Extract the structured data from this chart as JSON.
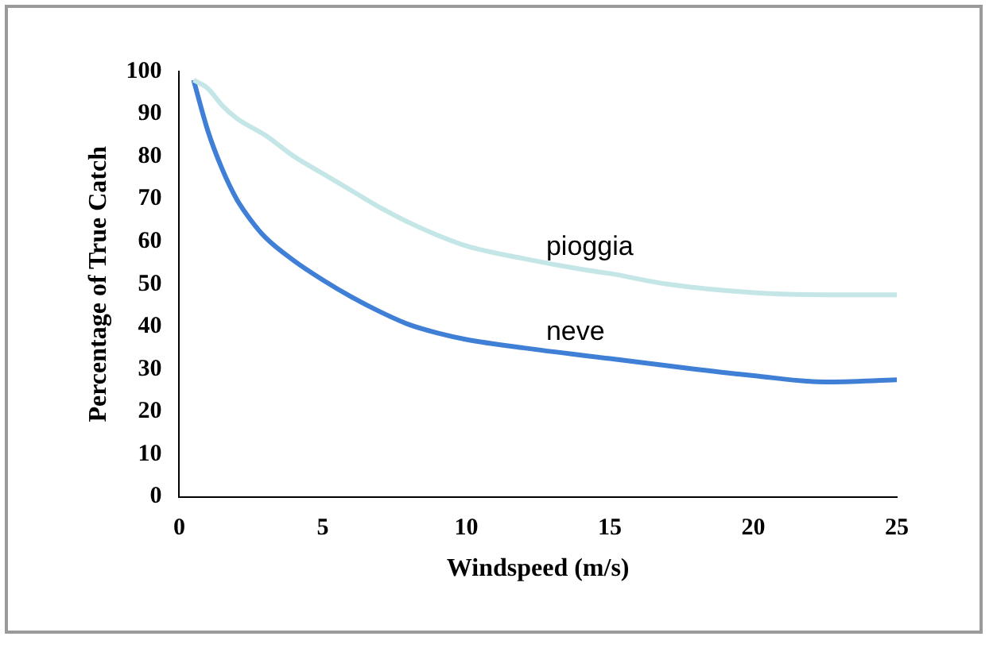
{
  "chart_data": {
    "type": "line",
    "xlabel": "Windspeed (m/s)",
    "ylabel": "Percentage of True Catch",
    "xlim": [
      0,
      25
    ],
    "xticks": [
      0,
      5,
      10,
      15,
      20,
      25
    ],
    "ylim": [
      0,
      100
    ],
    "yticks": [
      0,
      10,
      20,
      30,
      40,
      50,
      60,
      70,
      80,
      90,
      100
    ],
    "grid": false,
    "legend": false,
    "marker": "none",
    "line_style": "solid",
    "series": [
      {
        "name": "pioggia",
        "color": "#c4e6e6",
        "x": [
          0.5,
          1,
          1.5,
          2,
          3,
          4,
          5,
          6,
          7,
          8,
          9,
          10,
          12,
          14,
          15,
          17,
          20,
          22.5,
          25
        ],
        "values": [
          98,
          96,
          92,
          89,
          85,
          80,
          76,
          72,
          68,
          64.5,
          61.5,
          59,
          56,
          53.5,
          52.5,
          50,
          48,
          47.5,
          47.5
        ]
      },
      {
        "name": "neve",
        "color": "#3f7fd6",
        "x": [
          0.5,
          1,
          1.5,
          2,
          2.5,
          3,
          4,
          5,
          6,
          7,
          8,
          9,
          10,
          12,
          15,
          18,
          20,
          22.5,
          25
        ],
        "values": [
          98,
          86,
          77,
          70,
          65,
          61,
          55.5,
          51,
          47,
          43.5,
          40.5,
          38.5,
          37,
          35,
          32.5,
          30,
          28.5,
          27,
          27.5
        ]
      }
    ]
  }
}
